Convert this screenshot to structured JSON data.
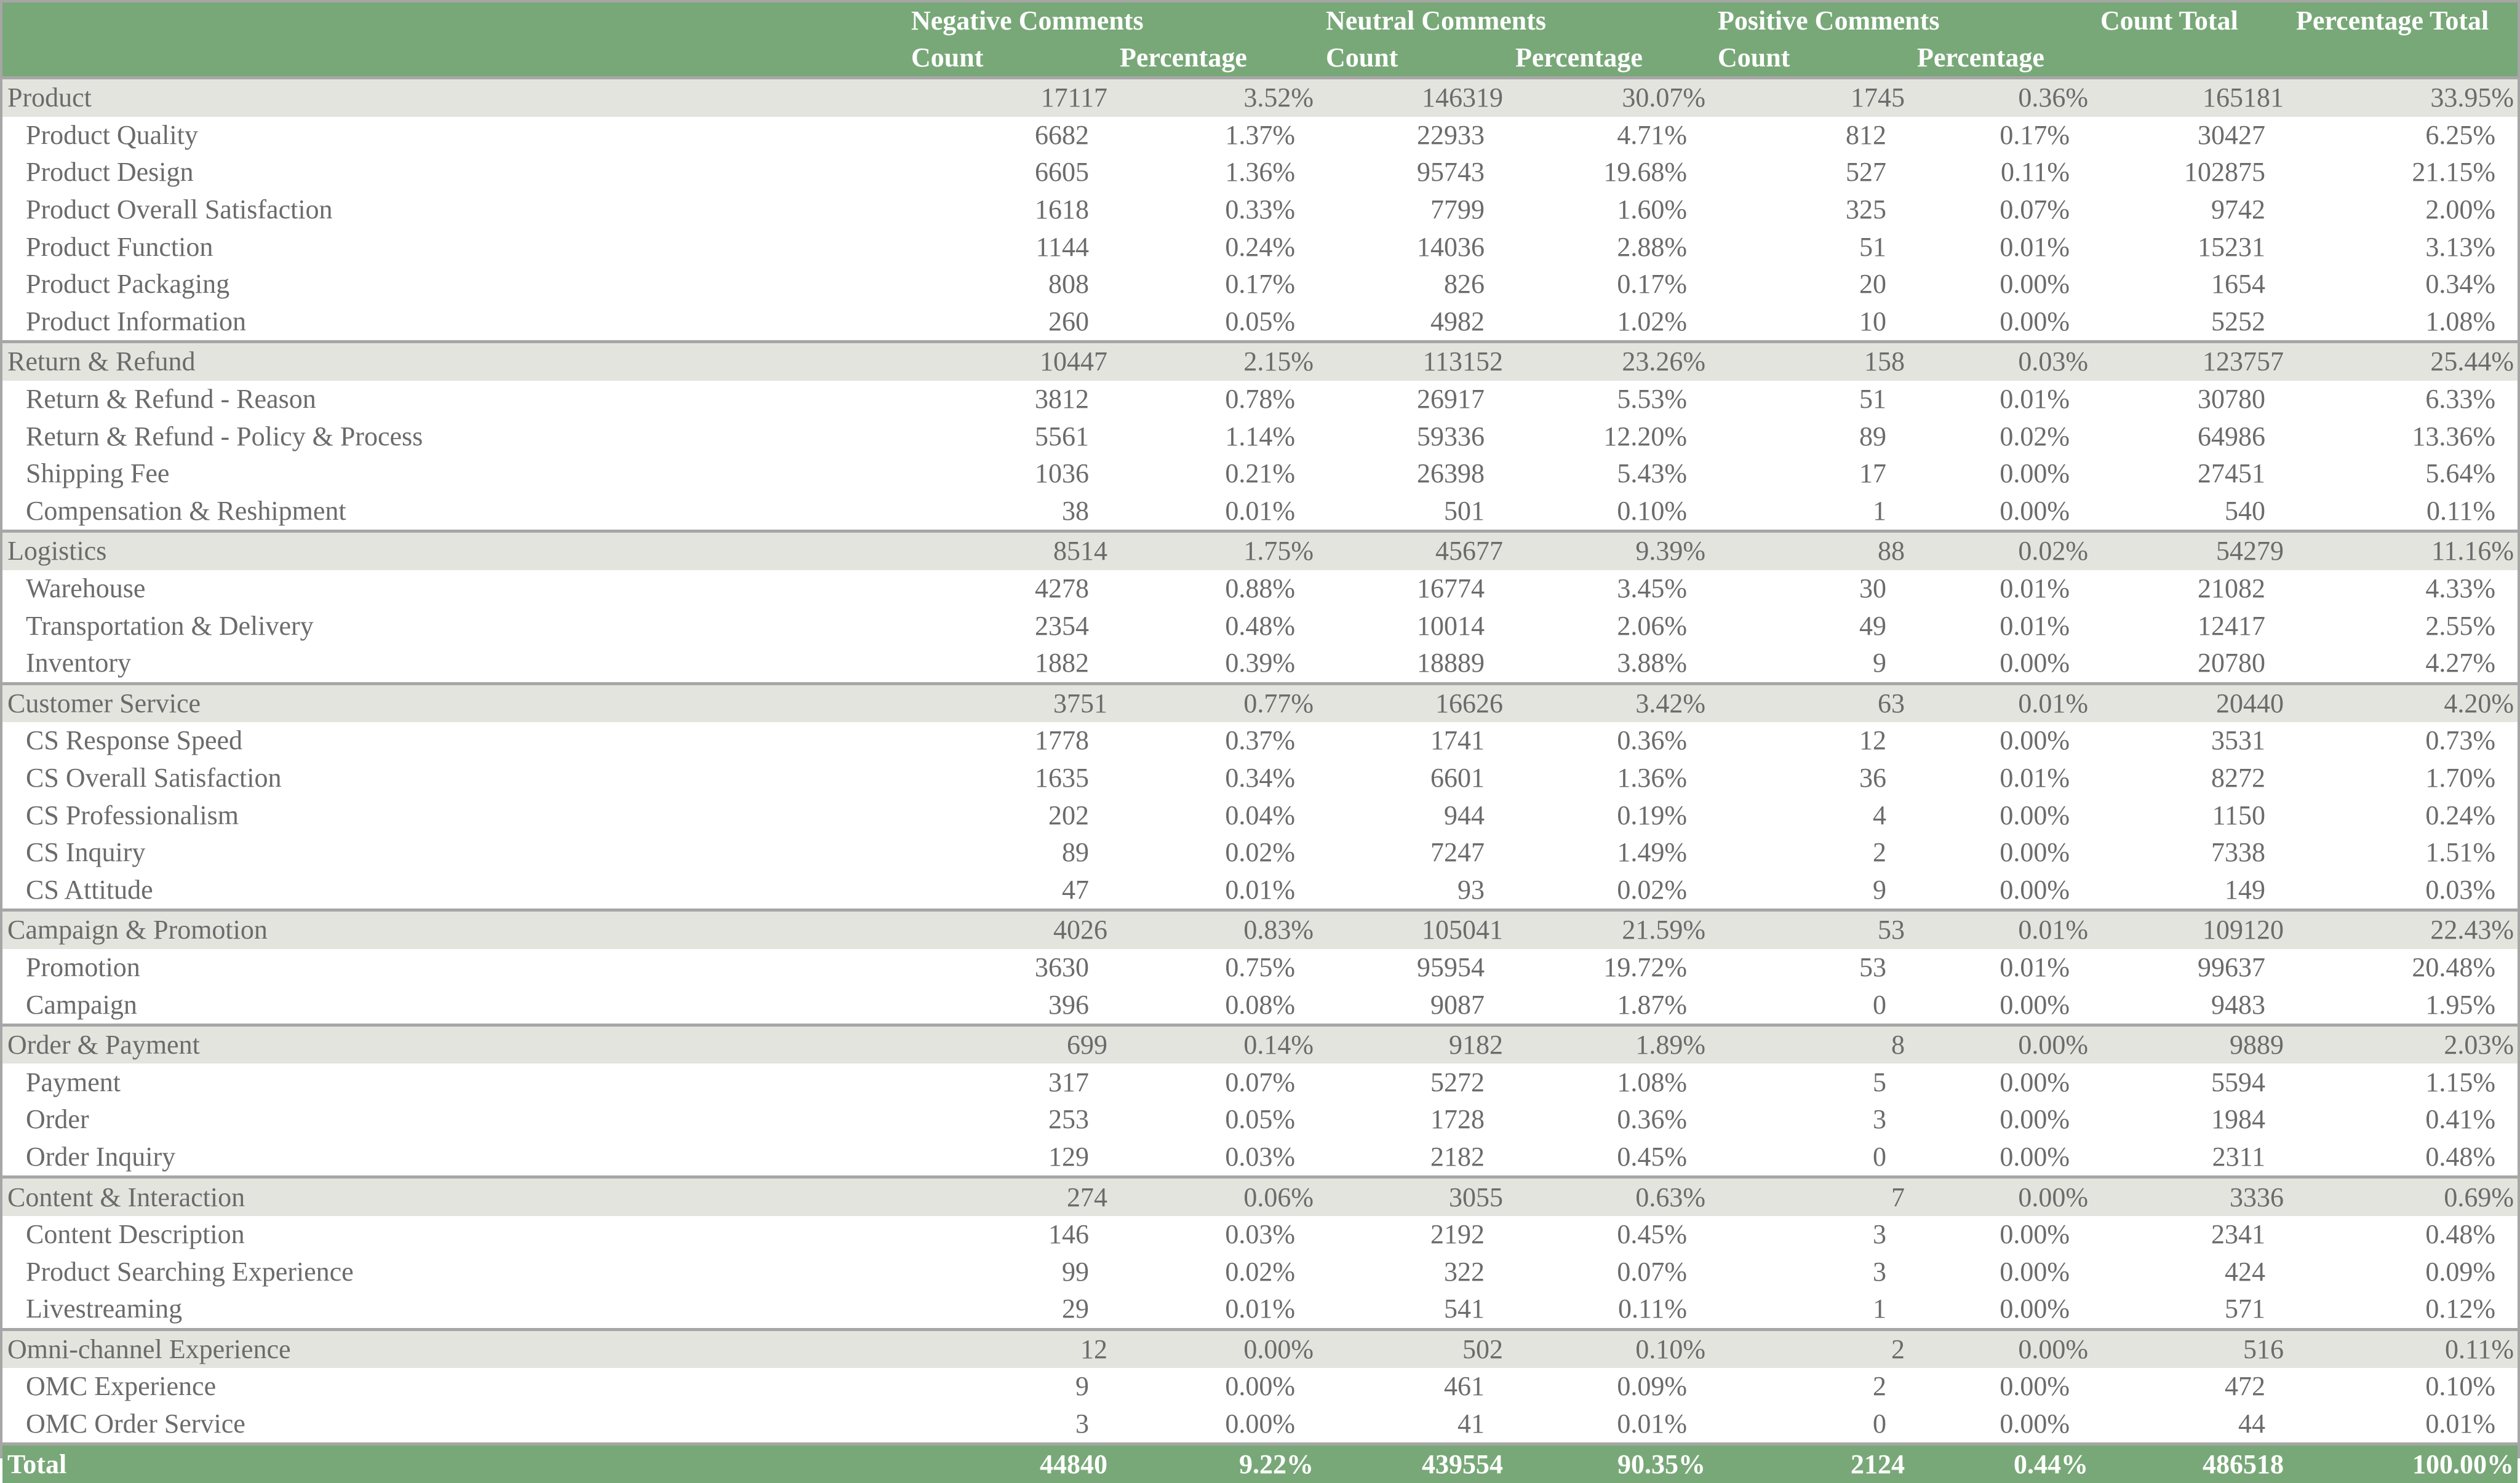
{
  "header": {
    "groups": [
      "Negative Comments",
      "Neutral Comments",
      "Positive Comments",
      "Count Total",
      "Percentage Total"
    ],
    "sub": [
      "Count",
      "Percentage",
      "Count",
      "Percentage",
      "Count",
      "Percentage"
    ]
  },
  "colors": {
    "header_bg": "#78a878",
    "category_bg": "#e4e4df",
    "border": "#a6a6a6",
    "text": "#6b6b6b"
  },
  "categories": [
    {
      "name": "Product",
      "values": [
        "17117",
        "3.52%",
        "146319",
        "30.07%",
        "1745",
        "0.36%",
        "165181",
        "33.95%"
      ],
      "items": [
        {
          "name": "Product Quality",
          "values": [
            "6682",
            "1.37%",
            "22933",
            "4.71%",
            "812",
            "0.17%",
            "30427",
            "6.25%"
          ]
        },
        {
          "name": "Product Design",
          "values": [
            "6605",
            "1.36%",
            "95743",
            "19.68%",
            "527",
            "0.11%",
            "102875",
            "21.15%"
          ]
        },
        {
          "name": "Product Overall Satisfaction",
          "values": [
            "1618",
            "0.33%",
            "7799",
            "1.60%",
            "325",
            "0.07%",
            "9742",
            "2.00%"
          ]
        },
        {
          "name": "Product Function",
          "values": [
            "1144",
            "0.24%",
            "14036",
            "2.88%",
            "51",
            "0.01%",
            "15231",
            "3.13%"
          ]
        },
        {
          "name": "Product Packaging",
          "values": [
            "808",
            "0.17%",
            "826",
            "0.17%",
            "20",
            "0.00%",
            "1654",
            "0.34%"
          ]
        },
        {
          "name": "Product Information",
          "values": [
            "260",
            "0.05%",
            "4982",
            "1.02%",
            "10",
            "0.00%",
            "5252",
            "1.08%"
          ]
        }
      ]
    },
    {
      "name": "Return & Refund",
      "values": [
        "10447",
        "2.15%",
        "113152",
        "23.26%",
        "158",
        "0.03%",
        "123757",
        "25.44%"
      ],
      "items": [
        {
          "name": "Return & Refund - Reason",
          "values": [
            "3812",
            "0.78%",
            "26917",
            "5.53%",
            "51",
            "0.01%",
            "30780",
            "6.33%"
          ]
        },
        {
          "name": "Return & Refund - Policy & Process",
          "values": [
            "5561",
            "1.14%",
            "59336",
            "12.20%",
            "89",
            "0.02%",
            "64986",
            "13.36%"
          ]
        },
        {
          "name": "Shipping Fee",
          "values": [
            "1036",
            "0.21%",
            "26398",
            "5.43%",
            "17",
            "0.00%",
            "27451",
            "5.64%"
          ]
        },
        {
          "name": "Compensation & Reshipment",
          "values": [
            "38",
            "0.01%",
            "501",
            "0.10%",
            "1",
            "0.00%",
            "540",
            "0.11%"
          ]
        }
      ]
    },
    {
      "name": "Logistics",
      "values": [
        "8514",
        "1.75%",
        "45677",
        "9.39%",
        "88",
        "0.02%",
        "54279",
        "11.16%"
      ],
      "items": [
        {
          "name": "Warehouse",
          "values": [
            "4278",
            "0.88%",
            "16774",
            "3.45%",
            "30",
            "0.01%",
            "21082",
            "4.33%"
          ]
        },
        {
          "name": "Transportation & Delivery",
          "values": [
            "2354",
            "0.48%",
            "10014",
            "2.06%",
            "49",
            "0.01%",
            "12417",
            "2.55%"
          ]
        },
        {
          "name": "Inventory",
          "values": [
            "1882",
            "0.39%",
            "18889",
            "3.88%",
            "9",
            "0.00%",
            "20780",
            "4.27%"
          ]
        }
      ]
    },
    {
      "name": "Customer Service",
      "values": [
        "3751",
        "0.77%",
        "16626",
        "3.42%",
        "63",
        "0.01%",
        "20440",
        "4.20%"
      ],
      "items": [
        {
          "name": "CS Response Speed",
          "values": [
            "1778",
            "0.37%",
            "1741",
            "0.36%",
            "12",
            "0.00%",
            "3531",
            "0.73%"
          ]
        },
        {
          "name": "CS Overall Satisfaction",
          "values": [
            "1635",
            "0.34%",
            "6601",
            "1.36%",
            "36",
            "0.01%",
            "8272",
            "1.70%"
          ]
        },
        {
          "name": "CS Professionalism",
          "values": [
            "202",
            "0.04%",
            "944",
            "0.19%",
            "4",
            "0.00%",
            "1150",
            "0.24%"
          ]
        },
        {
          "name": "CS Inquiry",
          "values": [
            "89",
            "0.02%",
            "7247",
            "1.49%",
            "2",
            "0.00%",
            "7338",
            "1.51%"
          ]
        },
        {
          "name": "CS Attitude",
          "values": [
            "47",
            "0.01%",
            "93",
            "0.02%",
            "9",
            "0.00%",
            "149",
            "0.03%"
          ]
        }
      ]
    },
    {
      "name": "Campaign & Promotion",
      "values": [
        "4026",
        "0.83%",
        "105041",
        "21.59%",
        "53",
        "0.01%",
        "109120",
        "22.43%"
      ],
      "items": [
        {
          "name": "Promotion",
          "values": [
            "3630",
            "0.75%",
            "95954",
            "19.72%",
            "53",
            "0.01%",
            "99637",
            "20.48%"
          ]
        },
        {
          "name": "Campaign",
          "values": [
            "396",
            "0.08%",
            "9087",
            "1.87%",
            "0",
            "0.00%",
            "9483",
            "1.95%"
          ]
        }
      ]
    },
    {
      "name": "Order & Payment",
      "values": [
        "699",
        "0.14%",
        "9182",
        "1.89%",
        "8",
        "0.00%",
        "9889",
        "2.03%"
      ],
      "items": [
        {
          "name": "Payment",
          "values": [
            "317",
            "0.07%",
            "5272",
            "1.08%",
            "5",
            "0.00%",
            "5594",
            "1.15%"
          ]
        },
        {
          "name": "Order",
          "values": [
            "253",
            "0.05%",
            "1728",
            "0.36%",
            "3",
            "0.00%",
            "1984",
            "0.41%"
          ]
        },
        {
          "name": "Order Inquiry",
          "values": [
            "129",
            "0.03%",
            "2182",
            "0.45%",
            "0",
            "0.00%",
            "2311",
            "0.48%"
          ]
        }
      ]
    },
    {
      "name": "Content & Interaction",
      "values": [
        "274",
        "0.06%",
        "3055",
        "0.63%",
        "7",
        "0.00%",
        "3336",
        "0.69%"
      ],
      "items": [
        {
          "name": "Content Description",
          "values": [
            "146",
            "0.03%",
            "2192",
            "0.45%",
            "3",
            "0.00%",
            "2341",
            "0.48%"
          ]
        },
        {
          "name": "Product Searching Experience",
          "values": [
            "99",
            "0.02%",
            "322",
            "0.07%",
            "3",
            "0.00%",
            "424",
            "0.09%"
          ]
        },
        {
          "name": "Livestreaming",
          "values": [
            "29",
            "0.01%",
            "541",
            "0.11%",
            "1",
            "0.00%",
            "571",
            "0.12%"
          ]
        }
      ]
    },
    {
      "name": "Omni-channel Experience",
      "values": [
        "12",
        "0.00%",
        "502",
        "0.10%",
        "2",
        "0.00%",
        "516",
        "0.11%"
      ],
      "items": [
        {
          "name": "OMC Experience",
          "values": [
            "9",
            "0.00%",
            "461",
            "0.09%",
            "2",
            "0.00%",
            "472",
            "0.10%"
          ]
        },
        {
          "name": "OMC Order Service",
          "values": [
            "3",
            "0.00%",
            "41",
            "0.01%",
            "0",
            "0.00%",
            "44",
            "0.01%"
          ]
        }
      ]
    }
  ],
  "total": {
    "name": "Total",
    "values": [
      "44840",
      "9.22%",
      "439554",
      "90.35%",
      "2124",
      "0.44%",
      "486518",
      "100.00%"
    ]
  }
}
